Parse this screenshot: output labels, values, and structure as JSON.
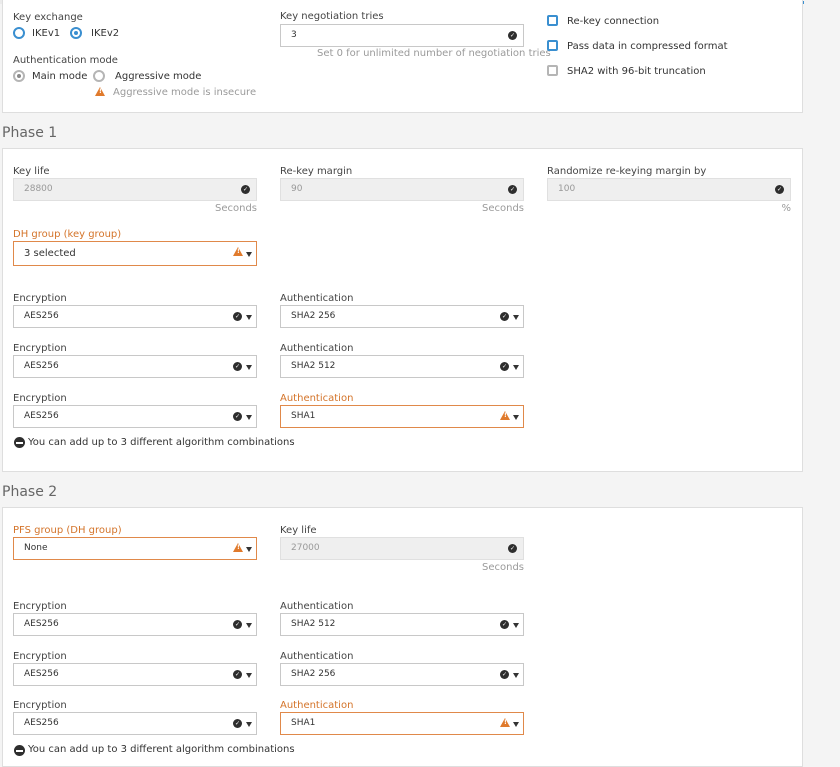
{
  "general": {
    "key_exchange_label": "Key exchange",
    "ikev1_label": "IKEv1",
    "ikev2_label": "IKEv2",
    "auth_mode_label": "Authentication mode",
    "main_mode_label": "Main mode",
    "aggressive_mode_label": "Aggressive mode",
    "aggressive_warning": "Aggressive mode is insecure",
    "key_tries_label": "Key negotiation tries",
    "key_tries_value": "3",
    "key_tries_hint": "Set 0 for unlimited number of negotiation tries",
    "rekey_label": "Re-key connection",
    "compress_label": "Pass data in compressed format",
    "sha2_label": "SHA2 with 96-bit truncation"
  },
  "phase1": {
    "title": "Phase 1",
    "key_life_label": "Key life",
    "key_life_value": "28800",
    "key_life_unit": "Seconds",
    "rekey_margin_label": "Re-key margin",
    "rekey_margin_value": "90",
    "rekey_margin_unit": "Seconds",
    "randomize_label": "Randomize re-keying margin by",
    "randomize_value": "100",
    "randomize_unit": "%",
    "dh_label": "DH group (key group)",
    "dh_value": "3 selected",
    "encryption_label": "Encryption",
    "authentication_label": "Authentication",
    "rows": [
      {
        "enc": "AES256",
        "auth": "SHA2 256"
      },
      {
        "enc": "AES256",
        "auth": "SHA2 512"
      },
      {
        "enc": "AES256",
        "auth": "SHA1"
      }
    ],
    "combo_note": "You can add up to 3 different algorithm combinations"
  },
  "phase2": {
    "title": "Phase 2",
    "pfs_label": "PFS group (DH group)",
    "pfs_value": "None",
    "key_life_label": "Key life",
    "key_life_value": "27000",
    "key_life_unit": "Seconds",
    "encryption_label": "Encryption",
    "authentication_label": "Authentication",
    "rows": [
      {
        "enc": "AES256",
        "auth": "SHA2 512"
      },
      {
        "enc": "AES256",
        "auth": "SHA2 256"
      },
      {
        "enc": "AES256",
        "auth": "SHA1"
      }
    ],
    "combo_note": "You can add up to 3 different algorithm combinations"
  },
  "colors": {
    "accent": "#3a8fd0",
    "warning": "#e07a2c",
    "warning_text": "#d4742a"
  }
}
